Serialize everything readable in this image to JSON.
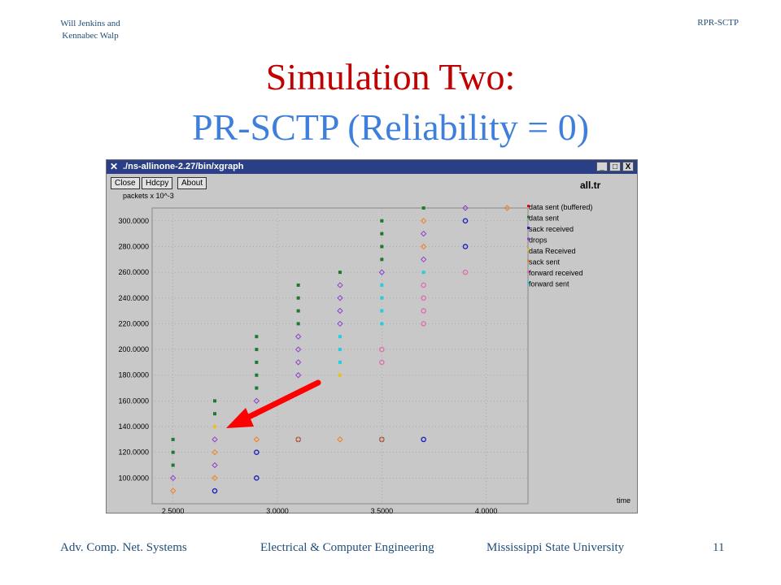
{
  "header": {
    "author_line1": "Will Jenkins and",
    "author_line2": "Kennabec Walp",
    "corner_right": "RPR-SCTP"
  },
  "slide": {
    "title_line1": "Simulation Two:",
    "title_line2": "PR-SCTP (Reliability = 0)"
  },
  "window": {
    "title": "./ns-allinone-2.27/bin/xgraph",
    "buttons": [
      "Close",
      "Hdcpy",
      "About"
    ],
    "controls": [
      "_",
      "□",
      "X"
    ],
    "plot_title": "all.tr",
    "y_units": "packets x 10^-3",
    "x_label": "time"
  },
  "chart_data": {
    "type": "scatter",
    "xlim": [
      2.4,
      4.2
    ],
    "ylim": [
      80,
      310
    ],
    "x_ticks": [
      "2.5000",
      "3.0000",
      "3.5000",
      "4.0000"
    ],
    "y_ticks": [
      "100.0000",
      "120.0000",
      "140.0000",
      "160.0000",
      "180.0000",
      "200.0000",
      "220.0000",
      "240.0000",
      "260.0000",
      "280.0000",
      "300.0000"
    ],
    "grid": true,
    "legend_placement": "right",
    "series": [
      {
        "name": "data sent (buffered)",
        "color": "#ff0000",
        "shape": "square",
        "points": []
      },
      {
        "name": "data sent",
        "color": "#1c7a2b",
        "shape": "square",
        "points": [
          [
            2.5,
            110
          ],
          [
            2.5,
            120
          ],
          [
            2.5,
            130
          ],
          [
            2.7,
            150
          ],
          [
            2.7,
            160
          ],
          [
            2.9,
            170
          ],
          [
            2.9,
            180
          ],
          [
            2.9,
            190
          ],
          [
            2.9,
            200
          ],
          [
            2.9,
            210
          ],
          [
            3.1,
            220
          ],
          [
            3.1,
            230
          ],
          [
            3.1,
            240
          ],
          [
            3.1,
            250
          ],
          [
            3.3,
            260
          ],
          [
            3.5,
            270
          ],
          [
            3.5,
            280
          ],
          [
            3.5,
            290
          ],
          [
            3.5,
            300
          ],
          [
            3.7,
            310
          ]
        ]
      },
      {
        "name": "sack received",
        "color": "#2020c0",
        "shape": "circle",
        "points": [
          [
            2.7,
            90
          ],
          [
            2.9,
            100
          ],
          [
            2.9,
            120
          ],
          [
            3.1,
            130
          ],
          [
            3.5,
            130
          ],
          [
            3.7,
            130
          ],
          [
            3.9,
            280
          ],
          [
            3.9,
            300
          ]
        ]
      },
      {
        "name": "drops",
        "color": "#9040d0",
        "shape": "diamond",
        "points": [
          [
            2.5,
            100
          ],
          [
            2.7,
            110
          ],
          [
            2.7,
            130
          ],
          [
            2.9,
            150
          ],
          [
            2.9,
            160
          ],
          [
            3.1,
            180
          ],
          [
            3.1,
            190
          ],
          [
            3.1,
            200
          ],
          [
            3.1,
            210
          ],
          [
            3.3,
            220
          ],
          [
            3.3,
            230
          ],
          [
            3.3,
            240
          ],
          [
            3.3,
            250
          ],
          [
            3.5,
            260
          ],
          [
            3.7,
            270
          ],
          [
            3.7,
            290
          ],
          [
            3.9,
            310
          ]
        ]
      },
      {
        "name": "data Received",
        "color": "#e8c020",
        "shape": "square",
        "points": [
          [
            2.7,
            140
          ],
          [
            3.3,
            180
          ]
        ]
      },
      {
        "name": "sack sent",
        "color": "#f08020",
        "shape": "diamond",
        "points": [
          [
            2.5,
            90
          ],
          [
            2.7,
            100
          ],
          [
            2.7,
            120
          ],
          [
            2.9,
            130
          ],
          [
            3.1,
            130
          ],
          [
            3.3,
            130
          ],
          [
            3.5,
            130
          ],
          [
            3.7,
            280
          ],
          [
            3.7,
            300
          ],
          [
            4.1,
            310
          ]
        ]
      },
      {
        "name": "forward received",
        "color": "#e070b0",
        "shape": "circle",
        "points": [
          [
            3.5,
            190
          ],
          [
            3.5,
            200
          ],
          [
            3.7,
            220
          ],
          [
            3.7,
            230
          ],
          [
            3.7,
            240
          ],
          [
            3.7,
            250
          ],
          [
            3.9,
            260
          ]
        ]
      },
      {
        "name": "forward sent",
        "color": "#20d0e0",
        "shape": "square",
        "points": [
          [
            3.3,
            190
          ],
          [
            3.3,
            200
          ],
          [
            3.3,
            210
          ],
          [
            3.5,
            220
          ],
          [
            3.5,
            230
          ],
          [
            3.5,
            240
          ],
          [
            3.5,
            250
          ],
          [
            3.7,
            260
          ]
        ]
      }
    ]
  },
  "footer": {
    "left": "Adv. Comp. Net. Systems",
    "center": "Electrical & Computer Engineering",
    "right": "Mississippi State University",
    "page_number": "11"
  }
}
